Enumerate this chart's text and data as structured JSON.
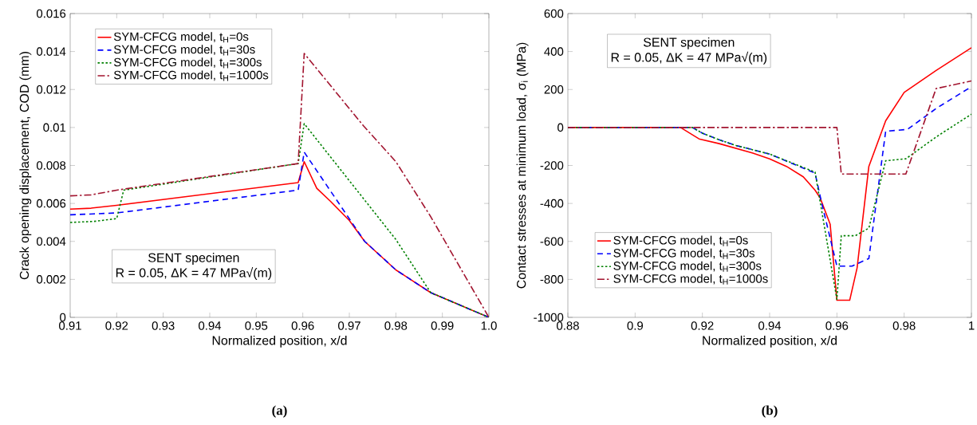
{
  "chart_data": [
    {
      "type": "line",
      "title": "(a)",
      "xlabel": "Normalized position, x/d",
      "ylabel": "Crack opening displacement, COD (mm)",
      "xlim": [
        0.91,
        1.0
      ],
      "ylim": [
        0,
        0.016
      ],
      "xticks": [
        0.91,
        0.92,
        0.93,
        0.94,
        0.95,
        0.96,
        0.97,
        0.98,
        0.99,
        {
          "value": 1.0,
          "label": "1.0"
        }
      ],
      "yticks": [
        0,
        0.002,
        0.004,
        0.006,
        0.008,
        0.01,
        0.012,
        0.014,
        0.016
      ],
      "legend": "top left",
      "annotations": [
        "SENT specimen",
        "R = 0.05, ΔK = 47 MPa√(m)"
      ],
      "series": [
        {
          "name": "SYM-CFCG model, t$_{H}$=0s",
          "color": "#ff0000",
          "line_style": "solid",
          "x": [
            0.91,
            0.9145,
            0.92,
            0.959,
            0.9603,
            0.963,
            0.966,
            0.97,
            0.9733,
            0.98,
            0.9875,
            1.0
          ],
          "values": [
            0.0057,
            0.00575,
            0.0059,
            0.0071,
            0.0082,
            0.0068,
            0.0061,
            0.0051,
            0.004,
            0.0025,
            0.0013,
            0.0
          ]
        },
        {
          "name": "SYM-CFCG model, t$_{H}$=30s",
          "color": "#0000ff",
          "line_style": "dashed",
          "x": [
            0.91,
            0.915,
            0.92,
            0.959,
            0.9603,
            0.9733,
            0.98,
            0.9875,
            1.0
          ],
          "values": [
            0.0054,
            0.00545,
            0.0055,
            0.0067,
            0.0087,
            0.004,
            0.0025,
            0.0013,
            0.0
          ]
        },
        {
          "name": "SYM-CFCG model, t$_{H}$=300s",
          "color": "#008000",
          "line_style": "dotted",
          "x": [
            0.91,
            0.915,
            0.92,
            0.9215,
            0.959,
            0.9603,
            0.98,
            0.9875,
            1.0
          ],
          "values": [
            0.005,
            0.00505,
            0.0052,
            0.0067,
            0.0081,
            0.0102,
            0.0041,
            0.0013,
            0.0
          ]
        },
        {
          "name": "SYM-CFCG model, t$_{H}$=1000s",
          "color": "#a2142f",
          "line_style": "dashdot",
          "x": [
            0.91,
            0.9145,
            0.92,
            0.959,
            0.9603,
            0.973,
            0.98,
            0.9875,
            1.0
          ],
          "values": [
            0.0064,
            0.00645,
            0.0067,
            0.0081,
            0.0139,
            0.0101,
            0.0082,
            0.0053,
            0.0
          ]
        }
      ]
    },
    {
      "type": "line",
      "title": "(b)",
      "xlabel": "Normalized position, x/d",
      "ylabel": "Contact stresses at minimum load, σ$_{i}$ (MPa)",
      "xlim": [
        0.88,
        1.0
      ],
      "ylim": [
        -1000,
        600
      ],
      "xticks": [
        0.88,
        0.9,
        0.92,
        0.94,
        0.96,
        0.98,
        1
      ],
      "yticks": [
        -1000,
        -800,
        -600,
        -400,
        -200,
        0,
        200,
        400,
        600
      ],
      "legend": "bottom left",
      "annotations": [
        "SENT specimen",
        "R = 0.05, ΔK = 47 MPa√(m)"
      ],
      "series": [
        {
          "name": "SYM-CFCG model, t$_{H}$=0s",
          "color": "#ff0000",
          "line_style": "solid",
          "x": [
            0.88,
            0.9135,
            0.919,
            0.925,
            0.93,
            0.935,
            0.94,
            0.945,
            0.95,
            0.9535,
            0.955,
            0.958,
            0.96,
            0.9638,
            0.966,
            0.9695,
            0.9745,
            0.98,
            0.9895,
            1.0
          ],
          "values": [
            0,
            0,
            -60,
            -85,
            -110,
            -135,
            -165,
            -205,
            -260,
            -330,
            -370,
            -510,
            -910,
            -910,
            -740,
            -205,
            35,
            185,
            300,
            420
          ]
        },
        {
          "name": "SYM-CFCG model, t$_{H}$=30s",
          "color": "#0000ff",
          "line_style": "dashed",
          "x": [
            0.88,
            0.917,
            0.92,
            0.925,
            0.93,
            0.94,
            0.9535,
            0.9555,
            0.96,
            0.9645,
            0.9695,
            0.9745,
            0.981,
            0.9895,
            1.0
          ],
          "values": [
            0,
            0,
            -30,
            -65,
            -95,
            -140,
            -240,
            -400,
            -730,
            -730,
            -690,
            -20,
            -10,
            100,
            215
          ]
        },
        {
          "name": "SYM-CFCG model, t$_{H}$=300s",
          "color": "#008000",
          "line_style": "dotted",
          "x": [
            0.88,
            0.917,
            0.92,
            0.925,
            0.93,
            0.94,
            0.9535,
            0.96,
            0.9613,
            0.9655,
            0.9695,
            0.9745,
            0.9805,
            0.9895,
            1.0
          ],
          "values": [
            0,
            0,
            -30,
            -65,
            -95,
            -140,
            -235,
            -905,
            -570,
            -570,
            -530,
            -175,
            -165,
            -50,
            70
          ]
        },
        {
          "name": "SYM-CFCG model, t$_{H}$=1000s",
          "color": "#a2142f",
          "line_style": "dashdot",
          "x": [
            0.88,
            0.96,
            0.9613,
            0.9805,
            0.9895,
            1.0
          ],
          "values": [
            0,
            0,
            -245,
            -245,
            205,
            245
          ]
        }
      ]
    }
  ]
}
